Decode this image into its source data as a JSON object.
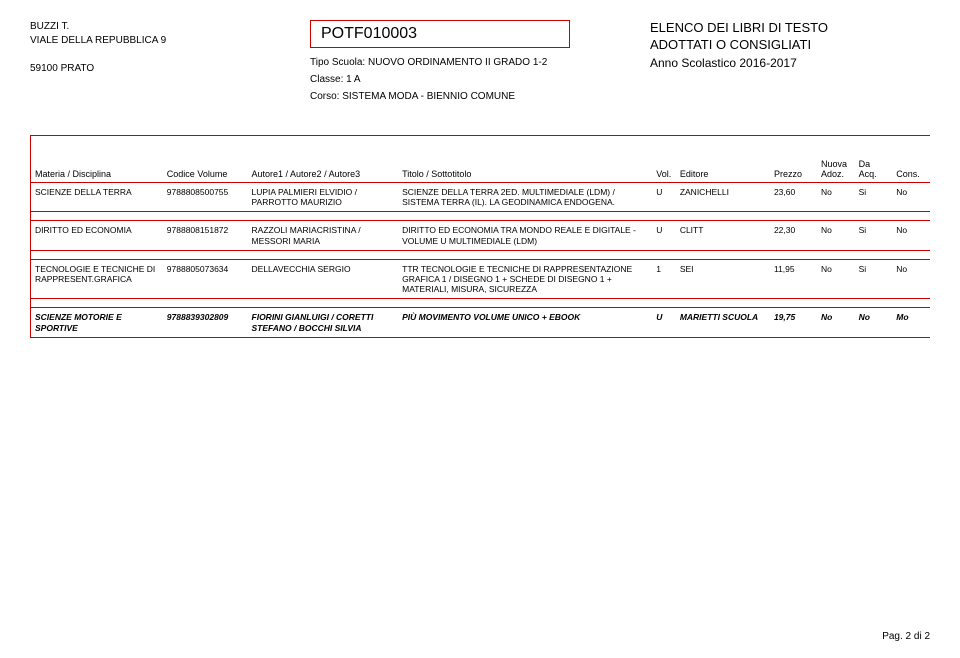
{
  "header": {
    "school_name": "BUZZI T.",
    "address": "VIALE DELLA REPUBBLICA 9",
    "postcode_city": "59100   PRATO",
    "code": "POTF010003",
    "tipo_label": "Tipo Scuola:",
    "tipo_value": "NUOVO ORDINAMENTO II GRADO 1-2",
    "classe_label": "Classe:",
    "classe_value": "1 A",
    "corso_label": "Corso:",
    "corso_value": "SISTEMA MODA - BIENNIO COMUNE",
    "right_line1": "ELENCO DEI LIBRI DI TESTO",
    "right_line2": "ADOTTATI O CONSIGLIATI",
    "right_line3": "Anno Scolastico 2016-2017"
  },
  "columns": {
    "materia": "Materia / Disciplina",
    "codice": "Codice Volume",
    "autore": "Autore1 / Autore2 / Autore3",
    "titolo": "Titolo / Sottotitolo",
    "vol": "Vol.",
    "editore": "Editore",
    "prezzo": "Prezzo",
    "nuova": "Nuova Adoz.",
    "da": "Da Acq.",
    "cons": "Cons."
  },
  "rows": [
    {
      "materia": "SCIENZE DELLA TERRA",
      "codice": "9788808500755",
      "autore": "LUPIA PALMIERI ELVIDIO / PARROTTO MAURIZIO",
      "titolo": "SCIENZE DELLA TERRA 2ED. MULTIMEDIALE (LDM) / SISTEMA TERRA (IL). LA GEODINAMICA ENDOGENA.",
      "vol": "U",
      "editore": "ZANICHELLI",
      "prezzo": "23,60",
      "nuova": "No",
      "da": "Si",
      "cons": "No",
      "italic": false
    },
    {
      "materia": "DIRITTO ED ECONOMIA",
      "codice": "9788808151872",
      "autore": "RAZZOLI MARIACRISTINA / MESSORI MARIA",
      "titolo": "DIRITTO ED ECONOMIA TRA MONDO REALE E DIGITALE - VOLUME U MULTIMEDIALE (LDM)",
      "vol": "U",
      "editore": "CLITT",
      "prezzo": "22,30",
      "nuova": "No",
      "da": "Si",
      "cons": "No",
      "italic": false
    },
    {
      "materia": "TECNOLOGIE E TECNICHE DI RAPPRESENT.GRAFICA",
      "codice": "9788805073634",
      "autore": "DELLAVECCHIA SERGIO",
      "titolo": "TTR TECNOLOGIE E TECNICHE DI RAPPRESENTAZIONE GRAFICA 1 / DISEGNO 1 + SCHEDE DI DISEGNO 1 + MATERIALI, MISURA, SICUREZZA",
      "vol": "1",
      "editore": "SEI",
      "prezzo": "11,95",
      "nuova": "No",
      "da": "Si",
      "cons": "No",
      "italic": false
    },
    {
      "materia": "SCIENZE MOTORIE E SPORTIVE",
      "codice": "9788839302809",
      "autore": "FIORINI GIANLUIGI / CORETTI STEFANO / BOCCHI SILVIA",
      "titolo": "PIÙ MOVIMENTO VOLUME UNICO + EBOOK",
      "vol": "U",
      "editore": "MARIETTI SCUOLA",
      "prezzo": "19,75",
      "nuova": "No",
      "da": "No",
      "cons": "Mo",
      "italic": true
    }
  ],
  "footer": "Pag. 2 di 2",
  "style": {
    "border_color": "#c00",
    "background_color": "#ffffff",
    "base_font_size_pt": 9,
    "header_code_font_size_pt": 16
  }
}
